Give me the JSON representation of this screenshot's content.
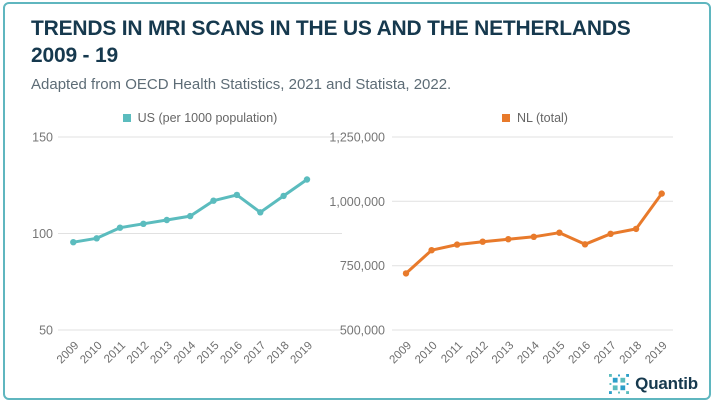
{
  "header": {
    "title_line1": "TRENDS IN MRI SCANS IN THE US AND THE NETHERLANDS",
    "title_line2": "2009 - 19",
    "subtitle": "Adapted from OECD Health Statistics, 2021 and Statista, 2022."
  },
  "colors": {
    "card_border_teal": "#5FB6BF",
    "title_navy": "#16394E",
    "subtitle_grey": "#5D6C76",
    "gridline_grey": "#E1E1E1",
    "axis_label_grey": "#767676",
    "us_line_teal": "#5BBCBE",
    "nl_line_orange": "#E87A2B"
  },
  "chart_data": [
    {
      "type": "line",
      "legend": "US (per 1000 population)",
      "legend_position": "top-center",
      "color": "#5BBCBE",
      "categories": [
        "2009",
        "2010",
        "2011",
        "2012",
        "2013",
        "2014",
        "2015",
        "2016",
        "2017",
        "2018",
        "2019"
      ],
      "values": [
        95.5,
        97.5,
        103,
        105,
        107,
        109,
        117,
        120,
        111,
        119.5,
        128
      ],
      "xlabel": "",
      "ylabel": "",
      "ylim": [
        50,
        150
      ],
      "yticks": [
        {
          "v": 150,
          "label": "150"
        },
        {
          "v": 100,
          "label": "100"
        },
        {
          "v": 50,
          "label": "50"
        }
      ],
      "grid": true,
      "marker": "dot"
    },
    {
      "type": "line",
      "legend": "NL (total)",
      "legend_position": "top-center",
      "color": "#E87A2B",
      "categories": [
        "2009",
        "2010",
        "2011",
        "2012",
        "2013",
        "2014",
        "2015",
        "2016",
        "2017",
        "2018",
        "2019"
      ],
      "values": [
        720000,
        810000,
        832000,
        843000,
        853000,
        862000,
        878000,
        833000,
        874000,
        893000,
        1030000
      ],
      "xlabel": "",
      "ylabel": "",
      "ylim": [
        500000,
        1250000
      ],
      "yticks": [
        {
          "v": 1250000,
          "label": "1,250,000"
        },
        {
          "v": 1000000,
          "label": "1,000,000"
        },
        {
          "v": 750000,
          "label": "750,000"
        },
        {
          "v": 500000,
          "label": "500,000"
        }
      ],
      "grid": true,
      "marker": "dot"
    }
  ],
  "logo": {
    "text": "Quantib",
    "icon": "starburst-of-squares"
  }
}
